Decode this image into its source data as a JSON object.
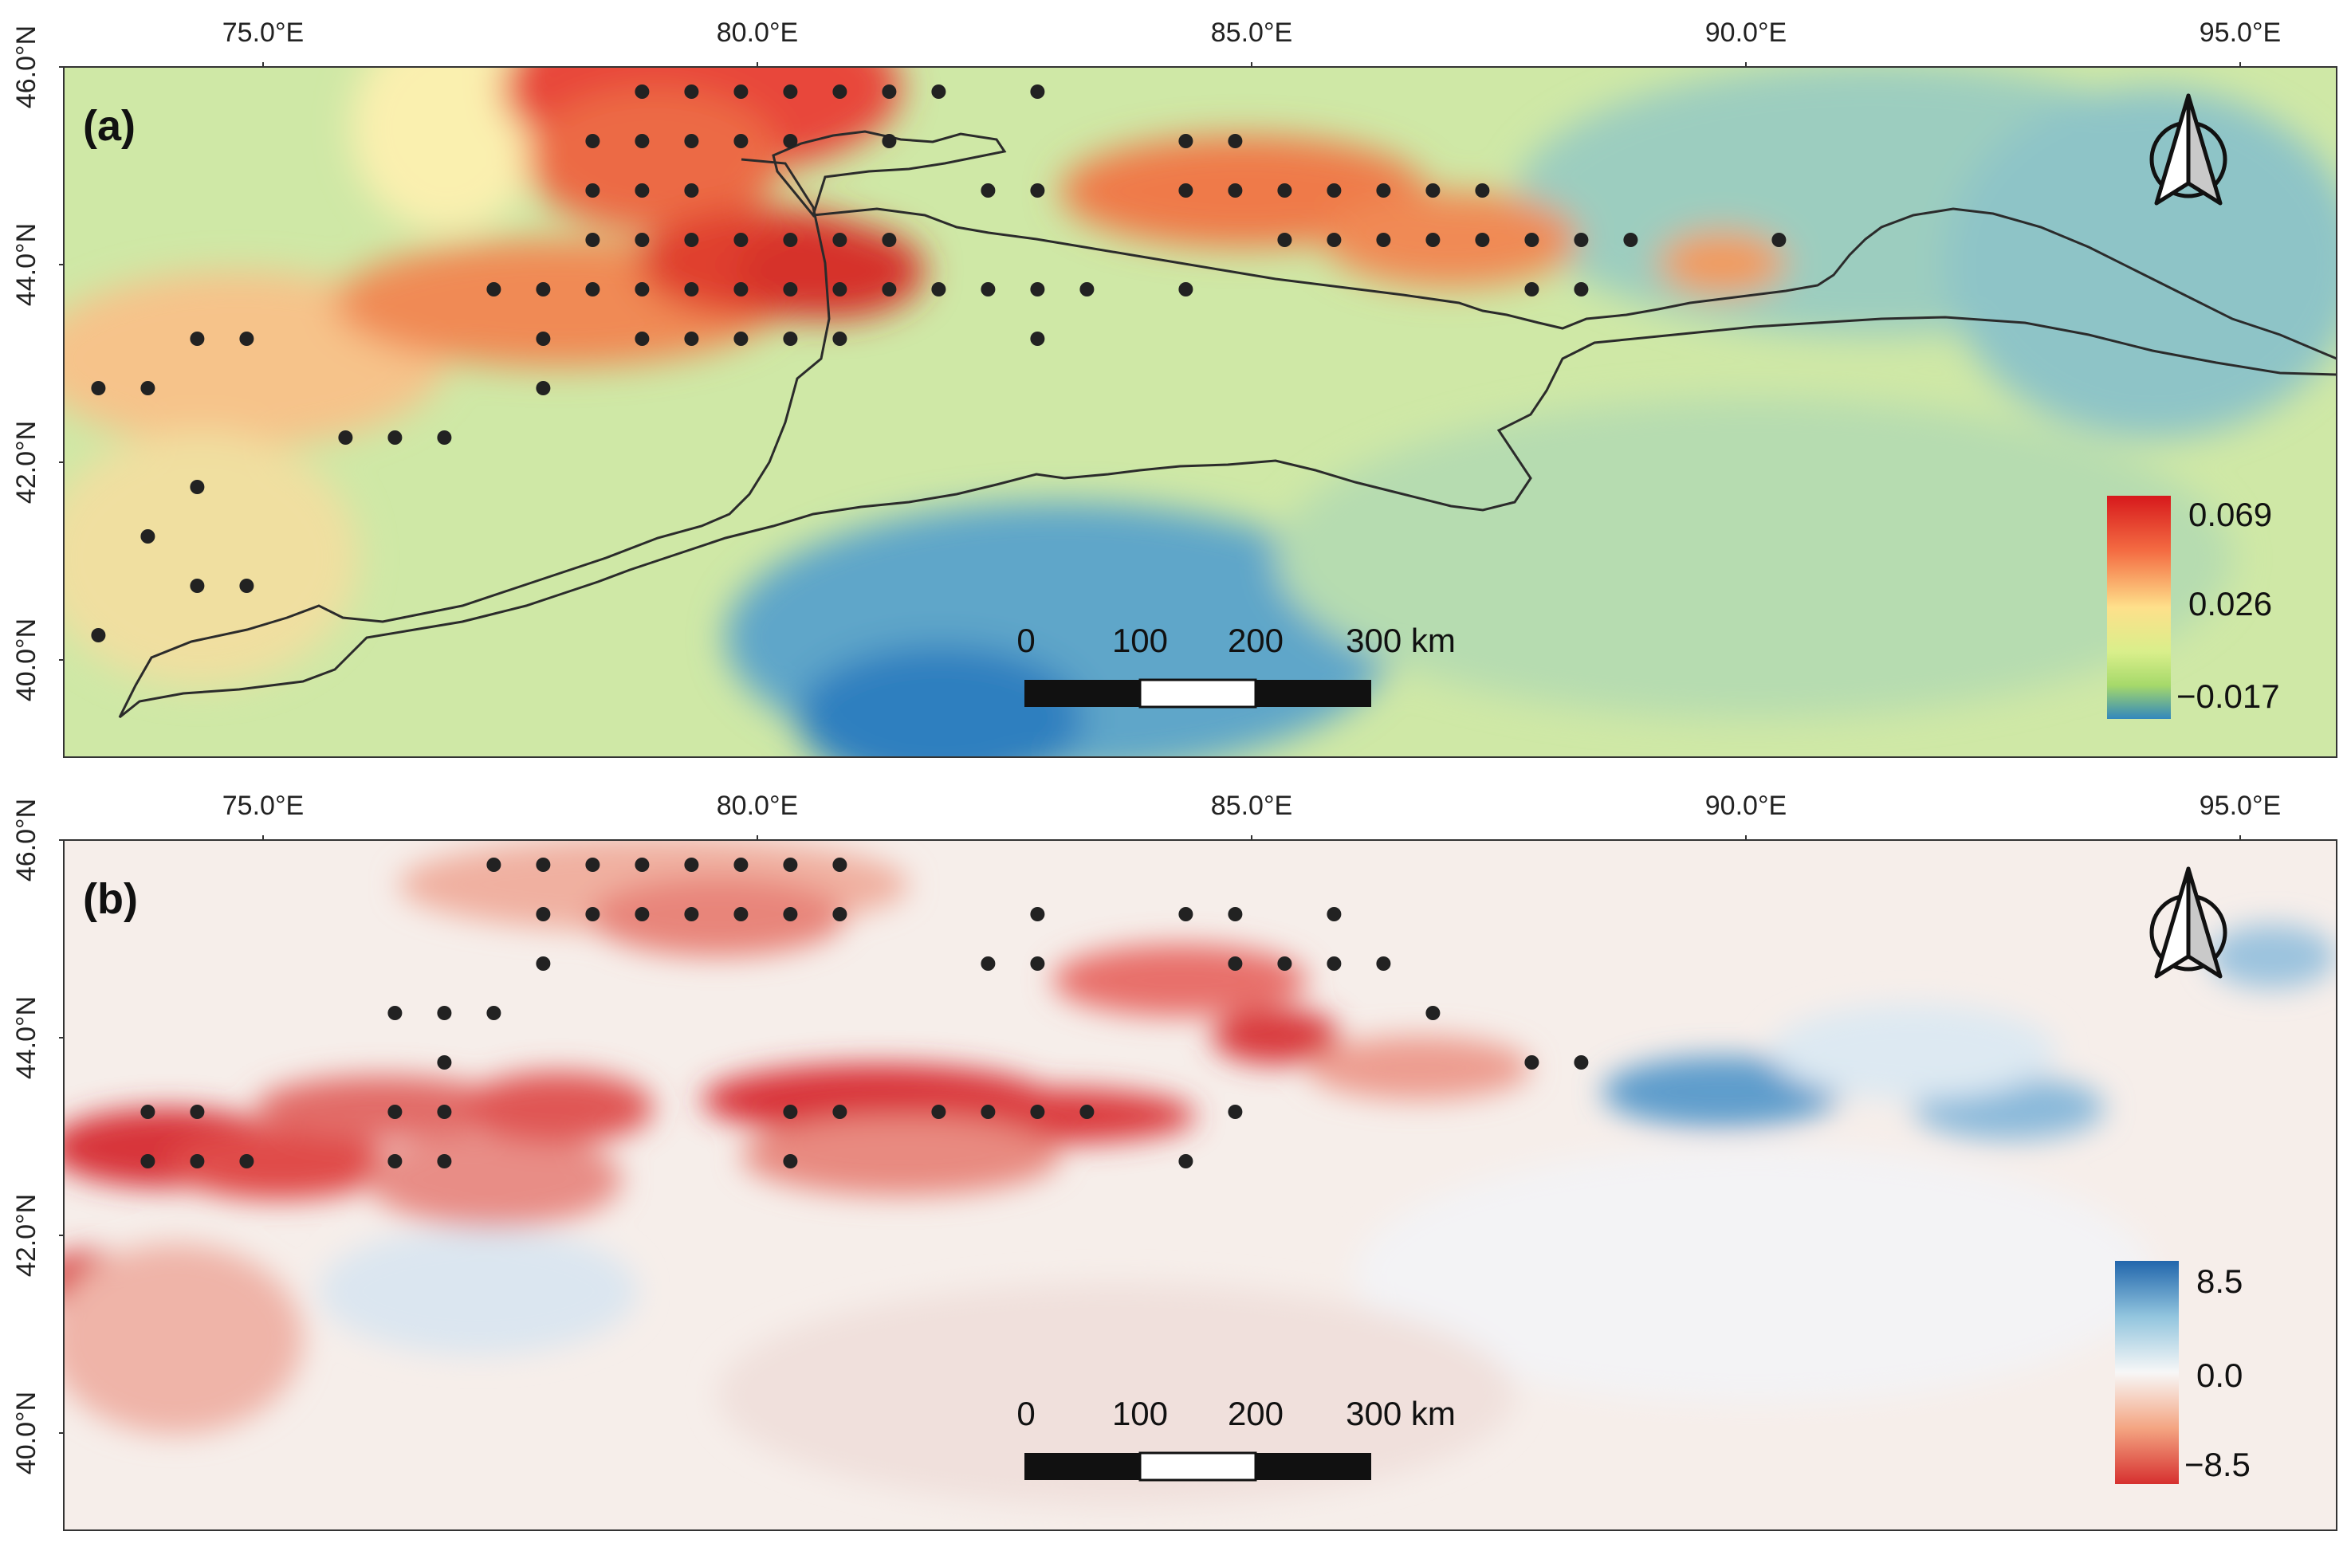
{
  "figure": {
    "panels": [
      {
        "id": "a",
        "label": "(a)",
        "lon_ticks": [
          "75.0°E",
          "80.0°E",
          "85.0°E",
          "90.0°E",
          "95.0°E"
        ],
        "lat_ticks": [
          "46.0°N",
          "44.0°N",
          "42.0°N",
          "40.0°N"
        ],
        "legend": {
          "max": "0.069",
          "mid": "0.026",
          "min": "−0.017",
          "colors": [
            "#d7191c",
            "#f46d43",
            "#fee08b",
            "#d9ef8b",
            "#a6d96a",
            "#3288bd"
          ]
        },
        "scalebar": {
          "labels": [
            "0",
            "100",
            "200",
            "300 km"
          ]
        },
        "north_arrow": "north-arrow-icon",
        "field_colors": {
          "low": "#3a86c0",
          "mid": "#c8e6a4",
          "high": "#d32f2f"
        },
        "significant_points": [
          [
            78.2,
            45.75
          ],
          [
            78.7,
            45.75
          ],
          [
            79.2,
            45.75
          ],
          [
            79.7,
            45.75
          ],
          [
            80.2,
            45.75
          ],
          [
            80.7,
            45.75
          ],
          [
            81.2,
            45.75
          ],
          [
            82.2,
            45.75
          ],
          [
            77.7,
            45.25
          ],
          [
            78.2,
            45.25
          ],
          [
            78.7,
            45.25
          ],
          [
            79.2,
            45.25
          ],
          [
            79.7,
            45.25
          ],
          [
            80.7,
            45.25
          ],
          [
            83.7,
            45.25
          ],
          [
            84.2,
            45.25
          ],
          [
            77.7,
            44.75
          ],
          [
            78.2,
            44.75
          ],
          [
            78.7,
            44.75
          ],
          [
            81.7,
            44.75
          ],
          [
            82.2,
            44.75
          ],
          [
            83.7,
            44.75
          ],
          [
            84.2,
            44.75
          ],
          [
            84.7,
            44.75
          ],
          [
            85.2,
            44.75
          ],
          [
            85.7,
            44.75
          ],
          [
            86.2,
            44.75
          ],
          [
            86.7,
            44.75
          ],
          [
            77.7,
            44.25
          ],
          [
            78.2,
            44.25
          ],
          [
            78.7,
            44.25
          ],
          [
            79.2,
            44.25
          ],
          [
            79.7,
            44.25
          ],
          [
            80.2,
            44.25
          ],
          [
            80.7,
            44.25
          ],
          [
            84.7,
            44.25
          ],
          [
            85.2,
            44.25
          ],
          [
            85.7,
            44.25
          ],
          [
            86.2,
            44.25
          ],
          [
            86.7,
            44.25
          ],
          [
            87.2,
            44.25
          ],
          [
            87.7,
            44.25
          ],
          [
            88.2,
            44.25
          ],
          [
            89.7,
            44.25
          ],
          [
            76.7,
            43.75
          ],
          [
            77.2,
            43.75
          ],
          [
            77.7,
            43.75
          ],
          [
            78.2,
            43.75
          ],
          [
            78.7,
            43.75
          ],
          [
            79.2,
            43.75
          ],
          [
            79.7,
            43.75
          ],
          [
            80.2,
            43.75
          ],
          [
            80.7,
            43.75
          ],
          [
            81.2,
            43.75
          ],
          [
            81.7,
            43.75
          ],
          [
            82.2,
            43.75
          ],
          [
            82.7,
            43.75
          ],
          [
            83.7,
            43.75
          ],
          [
            87.2,
            43.75
          ],
          [
            87.7,
            43.75
          ],
          [
            73.7,
            43.25
          ],
          [
            74.2,
            43.25
          ],
          [
            77.2,
            43.25
          ],
          [
            78.2,
            43.25
          ],
          [
            78.7,
            43.25
          ],
          [
            79.2,
            43.25
          ],
          [
            79.7,
            43.25
          ],
          [
            80.2,
            43.25
          ],
          [
            82.2,
            43.25
          ],
          [
            72.7,
            42.75
          ],
          [
            73.2,
            42.75
          ],
          [
            77.2,
            42.75
          ],
          [
            75.2,
            42.25
          ],
          [
            75.7,
            42.25
          ],
          [
            76.2,
            42.25
          ],
          [
            73.7,
            41.75
          ],
          [
            73.2,
            41.25
          ],
          [
            73.7,
            40.75
          ],
          [
            74.2,
            40.75
          ],
          [
            72.7,
            40.25
          ]
        ]
      },
      {
        "id": "b",
        "label": "(b)",
        "lon_ticks": [
          "75.0°E",
          "80.0°E",
          "85.0°E",
          "90.0°E",
          "95.0°E"
        ],
        "lat_ticks": [
          "46.0°N",
          "44.0°N",
          "42.0°N",
          "40.0°N"
        ],
        "legend": {
          "max": "8.5",
          "mid": "0.0",
          "min": "−8.5",
          "colors": [
            "#2166ac",
            "#92c5de",
            "#f7f7f7",
            "#f4a582",
            "#d6302f"
          ]
        },
        "scalebar": {
          "labels": [
            "0",
            "100",
            "200",
            "300 km"
          ]
        },
        "north_arrow": "north-arrow-icon",
        "field_colors": {
          "low": "#d6302f",
          "mid": "#f9efeb",
          "high": "#3b7fbf"
        },
        "significant_points": [
          [
            76.7,
            45.75
          ],
          [
            77.2,
            45.75
          ],
          [
            77.7,
            45.75
          ],
          [
            78.2,
            45.75
          ],
          [
            78.7,
            45.75
          ],
          [
            79.2,
            45.75
          ],
          [
            79.7,
            45.75
          ],
          [
            80.2,
            45.75
          ],
          [
            77.2,
            45.25
          ],
          [
            77.7,
            45.25
          ],
          [
            78.2,
            45.25
          ],
          [
            78.7,
            45.25
          ],
          [
            79.2,
            45.25
          ],
          [
            79.7,
            45.25
          ],
          [
            80.2,
            45.25
          ],
          [
            82.2,
            45.25
          ],
          [
            83.7,
            45.25
          ],
          [
            84.2,
            45.25
          ],
          [
            85.2,
            45.25
          ],
          [
            77.2,
            44.75
          ],
          [
            81.7,
            44.75
          ],
          [
            82.2,
            44.75
          ],
          [
            84.2,
            44.75
          ],
          [
            84.7,
            44.75
          ],
          [
            85.2,
            44.75
          ],
          [
            85.7,
            44.75
          ],
          [
            75.7,
            44.25
          ],
          [
            76.2,
            44.25
          ],
          [
            76.7,
            44.25
          ],
          [
            86.2,
            44.25
          ],
          [
            76.2,
            43.75
          ],
          [
            87.2,
            43.75
          ],
          [
            87.7,
            43.75
          ],
          [
            73.2,
            43.25
          ],
          [
            73.7,
            43.25
          ],
          [
            75.7,
            43.25
          ],
          [
            76.2,
            43.25
          ],
          [
            79.7,
            43.25
          ],
          [
            80.2,
            43.25
          ],
          [
            81.2,
            43.25
          ],
          [
            81.7,
            43.25
          ],
          [
            82.2,
            43.25
          ],
          [
            82.7,
            43.25
          ],
          [
            84.2,
            43.25
          ],
          [
            73.2,
            42.75
          ],
          [
            73.7,
            42.75
          ],
          [
            74.2,
            42.75
          ],
          [
            75.7,
            42.75
          ],
          [
            76.2,
            42.75
          ],
          [
            79.7,
            42.75
          ],
          [
            83.7,
            42.75
          ]
        ]
      }
    ]
  }
}
